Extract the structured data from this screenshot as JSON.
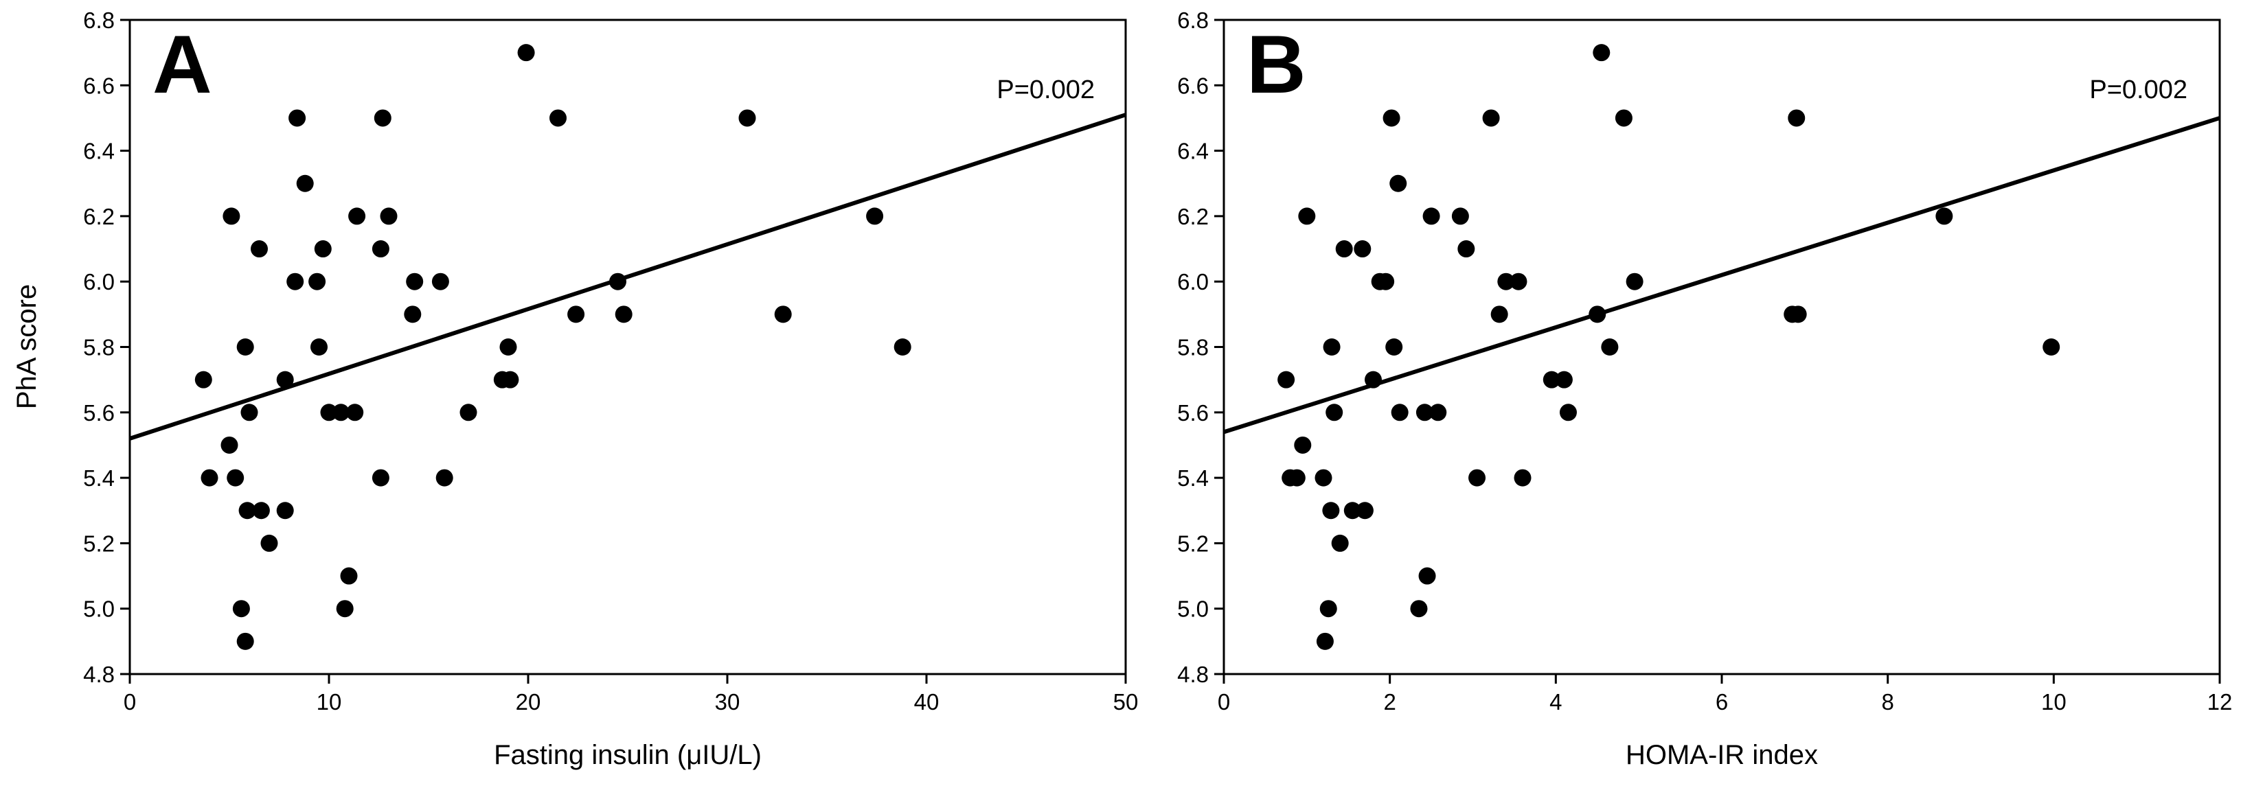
{
  "figure": {
    "style": {
      "point_color": "#000000",
      "line_color": "#000000",
      "background": "#ffffff"
    }
  },
  "chart_data": [
    {
      "type": "scatter",
      "panel_label": "A",
      "title": "",
      "xlabel": "Fasting insulin (μIU/L)",
      "ylabel": "PhA score",
      "xlim": [
        0,
        50
      ],
      "ylim": [
        4.8,
        6.8
      ],
      "xticks": [
        0,
        10,
        20,
        30,
        40,
        50
      ],
      "yticks": [
        4.8,
        5.0,
        5.2,
        5.4,
        5.6,
        5.8,
        6.0,
        6.2,
        6.4,
        6.6,
        6.8
      ],
      "xtick_labels": [
        "0",
        "10",
        "20",
        "30",
        "40",
        "50"
      ],
      "ytick_labels": [
        "4.8",
        "5.0",
        "5.2",
        "5.4",
        "5.6",
        "5.8",
        "6.0",
        "6.2",
        "6.4",
        "6.6",
        "6.8"
      ],
      "annotation": "P=0.002",
      "trendline": {
        "x": [
          0,
          50
        ],
        "y": [
          5.52,
          6.51
        ]
      },
      "points": [
        [
          3.7,
          5.7
        ],
        [
          4.0,
          5.4
        ],
        [
          5.0,
          5.5
        ],
        [
          5.1,
          6.2
        ],
        [
          5.3,
          5.4
        ],
        [
          5.6,
          5.0
        ],
        [
          5.8,
          4.9
        ],
        [
          5.8,
          5.8
        ],
        [
          5.9,
          5.3
        ],
        [
          6.0,
          5.6
        ],
        [
          6.5,
          6.1
        ],
        [
          6.6,
          5.3
        ],
        [
          7.0,
          5.2
        ],
        [
          7.8,
          5.3
        ],
        [
          7.8,
          5.7
        ],
        [
          8.3,
          6.0
        ],
        [
          8.4,
          6.5
        ],
        [
          8.8,
          6.3
        ],
        [
          9.4,
          6.0
        ],
        [
          9.5,
          5.8
        ],
        [
          9.7,
          6.1
        ],
        [
          10.0,
          5.6
        ],
        [
          10.6,
          5.6
        ],
        [
          10.8,
          5.0
        ],
        [
          11.0,
          5.1
        ],
        [
          11.3,
          5.6
        ],
        [
          11.4,
          6.2
        ],
        [
          12.6,
          6.1
        ],
        [
          12.6,
          5.4
        ],
        [
          12.7,
          6.5
        ],
        [
          13.0,
          6.2
        ],
        [
          14.2,
          5.9
        ],
        [
          14.3,
          6.0
        ],
        [
          15.6,
          6.0
        ],
        [
          15.8,
          5.4
        ],
        [
          17.0,
          5.6
        ],
        [
          18.7,
          5.7
        ],
        [
          19.0,
          5.8
        ],
        [
          19.1,
          5.7
        ],
        [
          19.9,
          6.7
        ],
        [
          21.5,
          6.5
        ],
        [
          22.4,
          5.9
        ],
        [
          24.5,
          6.0
        ],
        [
          24.8,
          5.9
        ],
        [
          31.0,
          6.5
        ],
        [
          32.8,
          5.9
        ],
        [
          37.4,
          6.2
        ],
        [
          38.8,
          5.8
        ]
      ]
    },
    {
      "type": "scatter",
      "panel_label": "B",
      "title": "",
      "xlabel": "HOMA-IR index",
      "ylabel": "",
      "xlim": [
        0,
        12
      ],
      "ylim": [
        4.8,
        6.8
      ],
      "xticks": [
        0,
        2,
        4,
        6,
        8,
        10,
        12
      ],
      "yticks": [
        4.8,
        5.0,
        5.2,
        5.4,
        5.6,
        5.8,
        6.0,
        6.2,
        6.4,
        6.6,
        6.8
      ],
      "xtick_labels": [
        "0",
        "2",
        "4",
        "6",
        "8",
        "10",
        "12"
      ],
      "ytick_labels": [
        "4.8",
        "5.0",
        "5.2",
        "5.4",
        "5.6",
        "5.8",
        "6.0",
        "6.2",
        "6.4",
        "6.6",
        "6.8"
      ],
      "annotation": "P=0.002",
      "trendline": {
        "x": [
          0,
          12
        ],
        "y": [
          5.54,
          6.5
        ]
      },
      "points": [
        [
          0.75,
          5.7
        ],
        [
          0.8,
          5.4
        ],
        [
          0.88,
          5.4
        ],
        [
          0.95,
          5.5
        ],
        [
          1.0,
          6.2
        ],
        [
          1.2,
          5.4
        ],
        [
          1.22,
          4.9
        ],
        [
          1.26,
          5.0
        ],
        [
          1.29,
          5.3
        ],
        [
          1.3,
          5.8
        ],
        [
          1.33,
          5.6
        ],
        [
          1.4,
          5.2
        ],
        [
          1.45,
          6.1
        ],
        [
          1.55,
          5.3
        ],
        [
          1.67,
          6.1
        ],
        [
          1.7,
          5.3
        ],
        [
          1.8,
          5.7
        ],
        [
          1.88,
          6.0
        ],
        [
          1.95,
          6.0
        ],
        [
          2.02,
          6.5
        ],
        [
          2.05,
          5.8
        ],
        [
          2.1,
          6.3
        ],
        [
          2.12,
          5.6
        ],
        [
          2.35,
          5.0
        ],
        [
          2.42,
          5.6
        ],
        [
          2.45,
          5.1
        ],
        [
          2.5,
          6.2
        ],
        [
          2.58,
          5.6
        ],
        [
          2.85,
          6.2
        ],
        [
          2.92,
          6.1
        ],
        [
          3.05,
          5.4
        ],
        [
          3.22,
          6.5
        ],
        [
          3.32,
          5.9
        ],
        [
          3.4,
          6.0
        ],
        [
          3.55,
          6.0
        ],
        [
          3.6,
          5.4
        ],
        [
          3.95,
          5.7
        ],
        [
          4.1,
          5.7
        ],
        [
          4.15,
          5.6
        ],
        [
          4.5,
          5.9
        ],
        [
          4.55,
          6.7
        ],
        [
          4.65,
          5.8
        ],
        [
          4.82,
          6.5
        ],
        [
          4.95,
          6.0
        ],
        [
          6.85,
          5.9
        ],
        [
          6.9,
          6.5
        ],
        [
          6.92,
          5.9
        ],
        [
          8.68,
          6.2
        ],
        [
          9.97,
          5.8
        ]
      ]
    }
  ]
}
